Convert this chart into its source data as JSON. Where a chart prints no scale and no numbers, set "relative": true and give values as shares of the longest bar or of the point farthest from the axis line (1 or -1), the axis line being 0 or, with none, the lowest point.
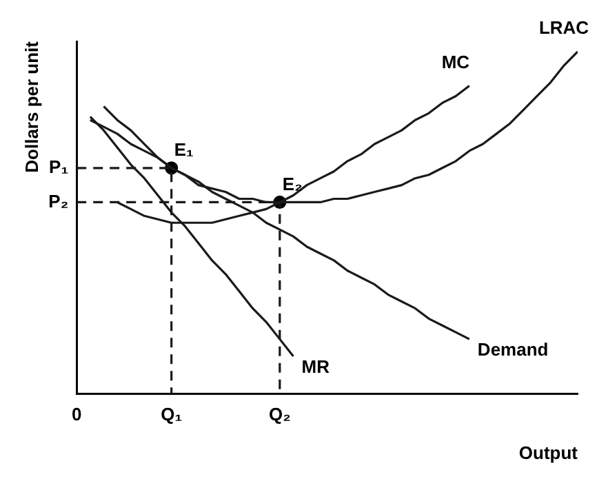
{
  "chart_data": {
    "type": "line",
    "relative": true,
    "xlabel": "Output",
    "ylabel": "Dollars per unit",
    "marker": "none",
    "line_style": "solid",
    "categories": [
      "0",
      null,
      null,
      null,
      null,
      null,
      null,
      "Q₁",
      null,
      null,
      null,
      null,
      null,
      null,
      null,
      "Q₂",
      null,
      null,
      null,
      null,
      null,
      null,
      null,
      null,
      null,
      null,
      null,
      null,
      null,
      null,
      null,
      null,
      null,
      null,
      null,
      null,
      null,
      null
    ],
    "series": [
      {
        "name": "MR",
        "color": "#1a1a1a",
        "values": [
          null,
          0.81,
          0.77,
          0.72,
          0.67,
          0.63,
          0.58,
          0.53,
          0.49,
          0.44,
          0.39,
          0.35,
          0.3,
          0.25,
          0.21,
          0.16,
          0.11,
          null,
          null,
          null,
          null,
          null,
          null,
          null,
          null,
          null,
          null,
          null,
          null,
          null,
          null,
          null,
          null,
          null,
          null,
          null,
          null,
          null
        ]
      },
      {
        "name": "Demand",
        "color": "#1a1a1a",
        "values": [
          null,
          0.8,
          0.78,
          0.76,
          0.73,
          0.71,
          0.69,
          0.66,
          0.64,
          0.62,
          0.59,
          0.57,
          0.55,
          0.53,
          0.5,
          0.48,
          0.46,
          0.43,
          0.41,
          0.39,
          0.36,
          0.34,
          0.32,
          0.29,
          0.27,
          0.25,
          0.22,
          0.2,
          0.18,
          0.16,
          null,
          null,
          null,
          null,
          null,
          null,
          null,
          null
        ]
      },
      {
        "name": "MC",
        "color": "#1a1a1a",
        "values": [
          null,
          null,
          null,
          0.56,
          0.54,
          0.52,
          0.51,
          0.5,
          0.5,
          0.5,
          0.5,
          0.51,
          0.52,
          0.53,
          0.54,
          0.56,
          0.58,
          0.61,
          0.63,
          0.65,
          0.68,
          0.7,
          0.73,
          0.75,
          0.77,
          0.8,
          0.82,
          0.85,
          0.87,
          0.9,
          null,
          null,
          null,
          null,
          null,
          null,
          null,
          null
        ]
      },
      {
        "name": "LRAC",
        "color": "#1a1a1a",
        "values": [
          null,
          null,
          0.84,
          0.8,
          0.77,
          0.73,
          0.69,
          0.66,
          0.64,
          0.61,
          0.6,
          0.59,
          0.57,
          0.57,
          0.56,
          0.56,
          0.56,
          0.56,
          0.56,
          0.57,
          0.57,
          0.58,
          0.59,
          0.6,
          0.61,
          0.63,
          0.64,
          0.66,
          0.68,
          0.71,
          0.73,
          0.76,
          0.79,
          0.83,
          0.87,
          0.91,
          0.96,
          1
        ]
      },
      {
        "type": "line",
        "line_style": "dashed",
        "color": "#1a1a1a",
        "x": [
          "0",
          "Q₁",
          "Q₁"
        ],
        "values": [
          0.66,
          0.66,
          0
        ]
      },
      {
        "type": "line",
        "line_style": "dashed",
        "color": "#1a1a1a",
        "x": [
          "0",
          "Q₂",
          "Q₂"
        ],
        "values": [
          0.56,
          0.56,
          0
        ]
      },
      {
        "type": "scatter",
        "marker": "circle",
        "color": "#000000",
        "x": [
          "Q₁",
          "Q₂"
        ],
        "values": [
          0.66,
          0.56
        ]
      }
    ],
    "annotations": [
      {
        "text": "P₁",
        "x": "0",
        "y": 0.66
      },
      {
        "text": "P₂",
        "x": "0",
        "y": 0.56
      },
      {
        "text": "E₁",
        "x": "Q₁",
        "y": 0.66
      },
      {
        "text": "E₂",
        "x": "Q₂",
        "y": 0.56
      }
    ]
  }
}
